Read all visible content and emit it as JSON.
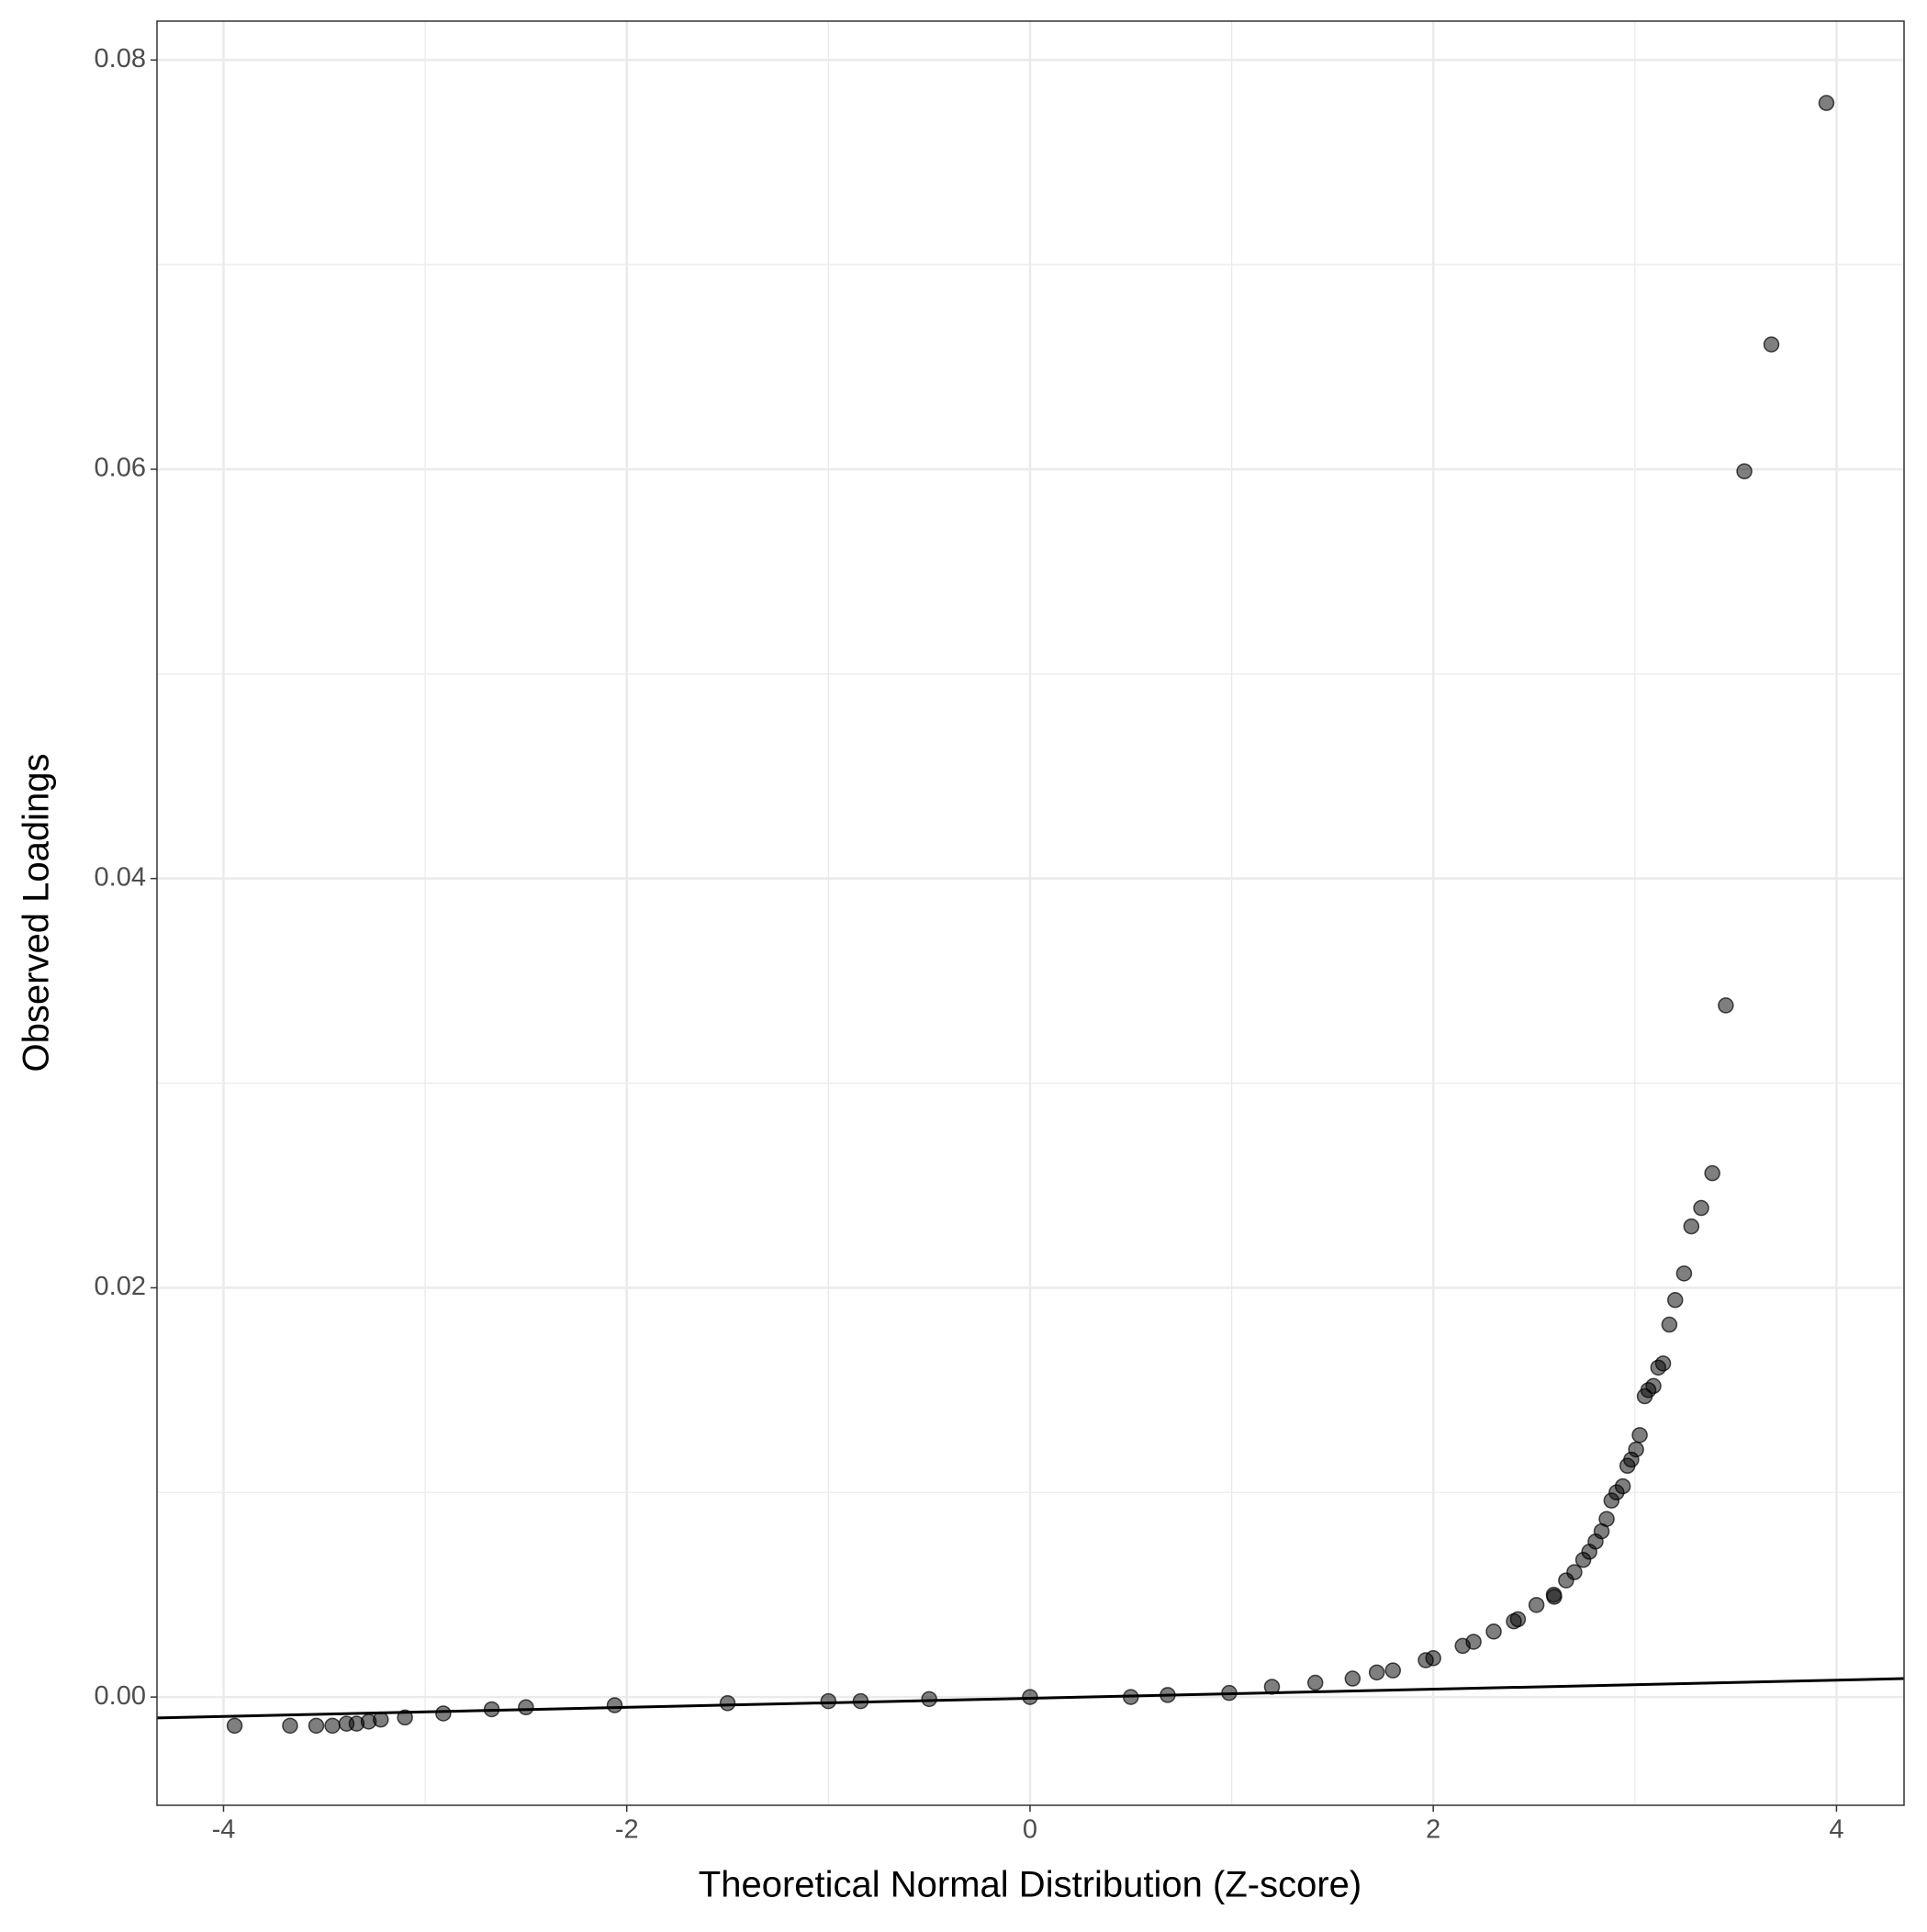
{
  "chart_data": {
    "type": "scatter",
    "xlabel": "Theoretical Normal Distribution (Z-score)",
    "ylabel": "Observed Loadings",
    "xlim": [
      -4.33,
      4.335
    ],
    "ylim": [
      -0.00529,
      0.0819
    ],
    "xticks": [
      -4,
      -2,
      0,
      2,
      4
    ],
    "yticks": [
      {
        "value": 0,
        "label": "0.00"
      },
      0.02,
      0.04,
      0.06,
      0.08
    ],
    "grid": true,
    "points": {
      "color": "#000000",
      "x": [
        -3.945,
        -3.67,
        -3.54,
        -3.46,
        -3.39,
        -3.34,
        -3.28,
        -3.22,
        -3.1,
        -2.91,
        -2.67,
        -2.5,
        -2.06,
        -1.5,
        -1,
        -0.84,
        -0.5,
        0,
        0.5,
        0.683,
        0.988,
        1.2,
        1.415,
        1.6,
        1.72,
        1.8,
        1.963,
        2.0,
        2.146,
        2.2,
        2.3,
        2.4,
        2.42,
        2.512,
        2.598,
        2.6,
        2.659,
        2.7,
        2.744,
        2.774,
        2.805,
        2.835,
        2.86,
        2.884,
        2.909,
        2.94,
        2.963,
        2.982,
        3.006,
        3.024,
        3.049,
        3.067,
        3.092,
        3.116,
        3.14,
        3.171,
        3.2,
        3.244,
        3.28,
        3.329,
        3.384,
        3.451,
        3.543,
        3.677,
        3.95
      ],
      "y": [
        -0.0014,
        -0.0014,
        -0.0014,
        -0.0014,
        -0.0013,
        -0.0013,
        -0.0012,
        -0.0011,
        -0.001,
        -0.0008,
        -0.0006,
        -0.0005,
        -0.0004,
        -0.0003,
        -0.0002,
        -0.0002,
        -0.0001,
        0,
        0,
        0.0001,
        0.0002,
        0.0005,
        0.0007,
        0.0009,
        0.0012,
        0.0013,
        0.0018,
        0.0019,
        0.0025,
        0.0027,
        0.0032,
        0.0037,
        0.0038,
        0.0045,
        0.005,
        0.0049,
        0.0057,
        0.0061,
        0.0067,
        0.0071,
        0.0076,
        0.0081,
        0.0087,
        0.0096,
        0.01,
        0.0103,
        0.0113,
        0.0116,
        0.0121,
        0.0128,
        0.0147,
        0.015,
        0.0152,
        0.0161,
        0.0163,
        0.0182,
        0.0194,
        0.0207,
        0.023,
        0.0239,
        0.0256,
        0.0338,
        0.0599,
        0.0661,
        0.0779
      ]
    },
    "reference_line": {
      "color": "#000000",
      "x": [
        -4.33,
        4.335
      ],
      "y": [
        -0.00102,
        0.0009
      ]
    }
  }
}
